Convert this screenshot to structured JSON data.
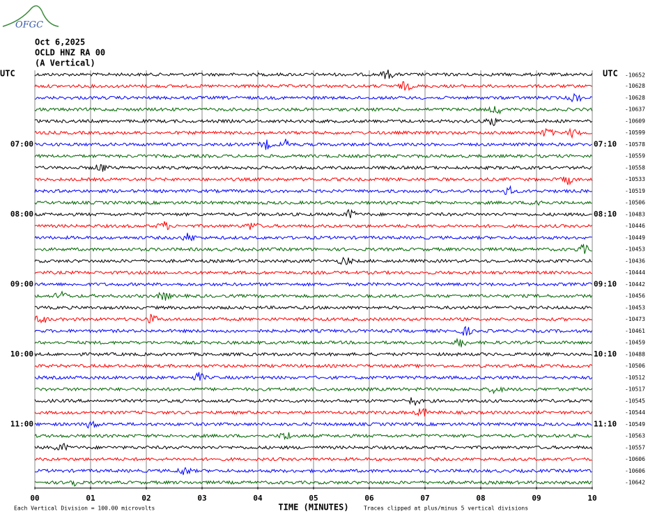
{
  "logo": "OFGC",
  "chart_data": {
    "type": "helicorder",
    "title": [
      "Oct 6,2025",
      "OCLD HNZ RA 00",
      "(A Vertical)"
    ],
    "left_unit": "UTC",
    "right_unit": "UTC",
    "left_labels": [
      null,
      null,
      null,
      null,
      null,
      null,
      "07:00",
      null,
      null,
      null,
      null,
      null,
      "08:00",
      null,
      null,
      null,
      null,
      null,
      "09:00",
      null,
      null,
      null,
      null,
      null,
      "10:00",
      null,
      null,
      null,
      null,
      null,
      "11:00",
      null,
      null,
      null,
      null,
      null
    ],
    "right_labels": [
      null,
      null,
      null,
      null,
      null,
      null,
      "07:10",
      null,
      null,
      null,
      null,
      null,
      "08:10",
      null,
      null,
      null,
      null,
      null,
      "09:10",
      null,
      null,
      null,
      null,
      null,
      "10:10",
      null,
      null,
      null,
      null,
      null,
      "11:10",
      null,
      null,
      null,
      null,
      null
    ],
    "trace_labels": [
      -10652,
      -10628,
      -10628,
      -10637,
      -10609,
      -10599,
      -10578,
      -10559,
      -10558,
      -10533,
      -10519,
      -10506,
      -10483,
      -10446,
      -10449,
      -10453,
      -10436,
      -10444,
      -10442,
      -10456,
      -10453,
      -10473,
      -10461,
      -10459,
      -10488,
      -10506,
      -10512,
      -10517,
      -10545,
      -10544,
      -10549,
      -10563,
      -10557,
      -10606,
      -10606,
      -10642
    ],
    "colors": [
      "#000000",
      "#ff0000",
      "#0000ff",
      "#006400"
    ],
    "xlabel": "TIME (MINUTES)",
    "xlim": [
      0,
      10
    ],
    "xticks": [
      {
        "value": 0,
        "label": "00"
      },
      {
        "value": 1,
        "label": "01"
      },
      {
        "value": 2,
        "label": "02"
      },
      {
        "value": 3,
        "label": "03"
      },
      {
        "value": 4,
        "label": "04"
      },
      {
        "value": 5,
        "label": "05"
      },
      {
        "value": 6,
        "label": "06"
      },
      {
        "value": 7,
        "label": "07"
      },
      {
        "value": 8,
        "label": "08"
      },
      {
        "value": 9,
        "label": "09"
      },
      10
    ],
    "grid": true,
    "footnote_left": "Each Vertical Division =  100.00 microvolts",
    "footnote_right": "Traces clipped at plus/minus 5 vertical divisions"
  }
}
